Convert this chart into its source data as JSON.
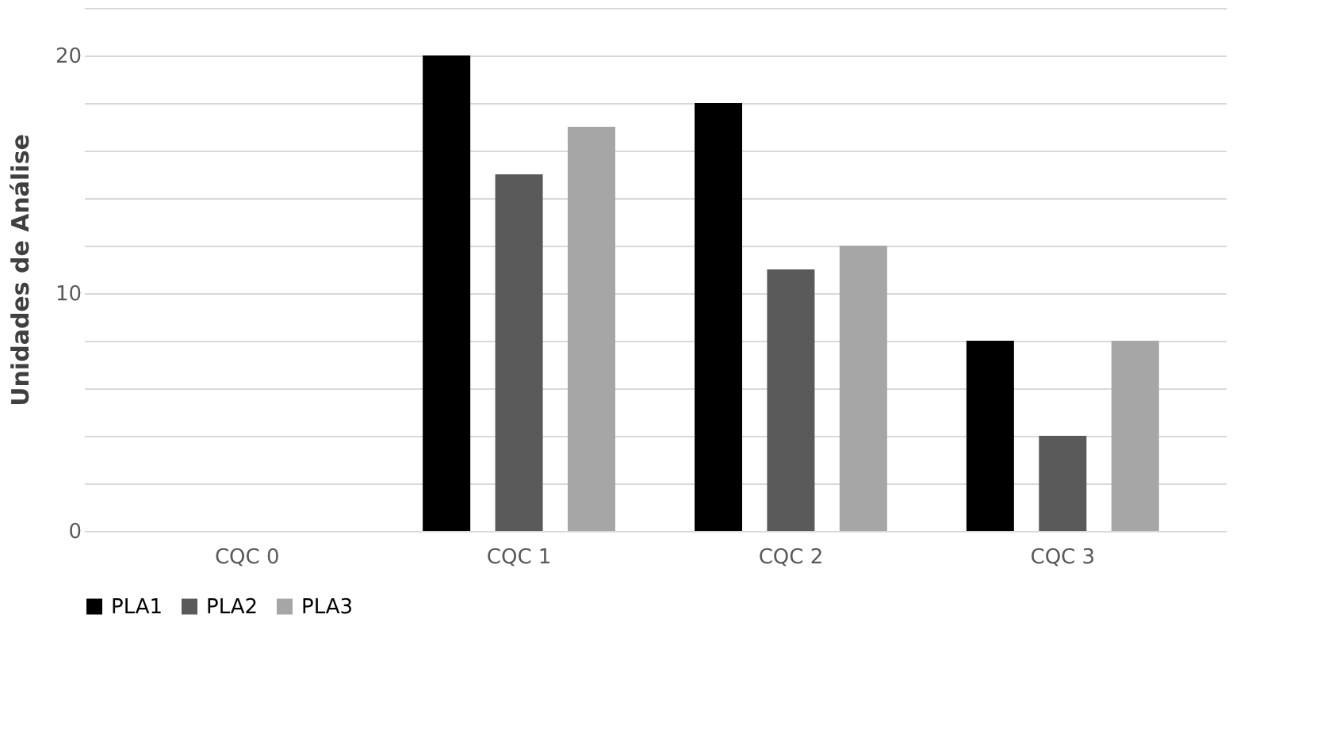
{
  "chart_data": {
    "type": "bar",
    "ylabel": "Unidades de Análise",
    "categories": [
      "CQC 0",
      "CQC 1",
      "CQC 2",
      "CQC 3"
    ],
    "series": [
      {
        "name": "PLA1",
        "color": "#000000",
        "values": [
          0,
          20,
          18,
          8
        ]
      },
      {
        "name": "PLA2",
        "color": "#5a5a5a",
        "values": [
          0,
          15,
          11,
          4
        ]
      },
      {
        "name": "PLA3",
        "color": "#a6a6a6",
        "values": [
          0,
          17,
          12,
          8
        ]
      }
    ],
    "ylim": [
      0,
      22
    ],
    "yticks": [
      0,
      {
        "value": 2,
        "label": null
      },
      {
        "value": 4,
        "label": null
      },
      {
        "value": 6,
        "label": null
      },
      {
        "value": 8,
        "label": null
      },
      10,
      {
        "value": 12,
        "label": null
      },
      {
        "value": 14,
        "label": null
      },
      {
        "value": 16,
        "label": null
      },
      {
        "value": 18,
        "label": null
      },
      20,
      {
        "value": 22,
        "label": null
      }
    ],
    "grid": "y",
    "legend": "bottom"
  }
}
